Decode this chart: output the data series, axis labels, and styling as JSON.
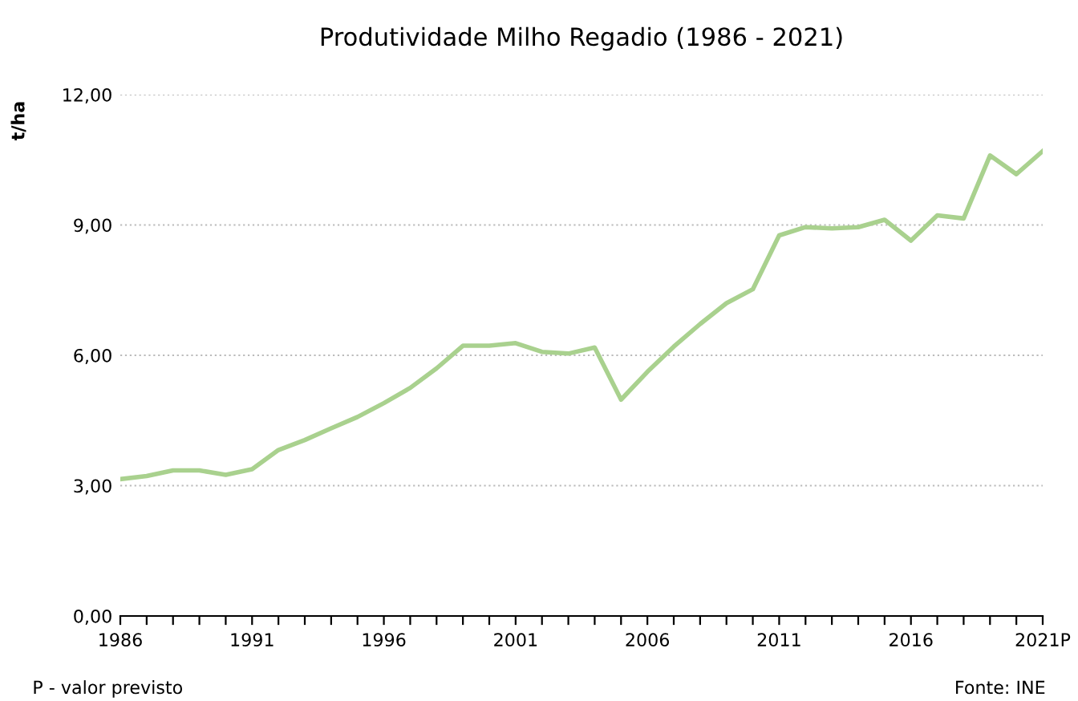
{
  "chart_data": {
    "type": "line",
    "title": "Produtividade Milho Regadio (1986 - 2021)",
    "ylabel": "t/ha",
    "x": [
      1986,
      1987,
      1988,
      1989,
      1990,
      1991,
      1992,
      1993,
      1994,
      1995,
      1996,
      1997,
      1998,
      1999,
      2000,
      2001,
      2002,
      2003,
      2004,
      2005,
      2006,
      2007,
      2008,
      2009,
      2010,
      2011,
      2012,
      2013,
      2014,
      2015,
      2016,
      2017,
      2018,
      2019,
      2020,
      2021
    ],
    "series": [
      {
        "color": "#a9d18e",
        "values": [
          3.15,
          3.22,
          3.35,
          3.35,
          3.25,
          3.38,
          3.82,
          4.05,
          4.32,
          4.58,
          4.9,
          5.25,
          5.7,
          6.22,
          6.22,
          6.28,
          6.08,
          6.04,
          6.18,
          4.98,
          5.62,
          6.2,
          6.72,
          7.2,
          7.52,
          8.76,
          8.95,
          8.92,
          8.95,
          9.12,
          8.64,
          9.22,
          9.15,
          10.6,
          10.17,
          10.7
        ]
      }
    ],
    "xlim": [
      1986,
      2021
    ],
    "xticks": [
      1986,
      {
        "value": 1987,
        "label": null
      },
      {
        "value": 1988,
        "label": null
      },
      {
        "value": 1989,
        "label": null
      },
      {
        "value": 1990,
        "label": null
      },
      1991,
      {
        "value": 1992,
        "label": null
      },
      {
        "value": 1993,
        "label": null
      },
      {
        "value": 1994,
        "label": null
      },
      {
        "value": 1995,
        "label": null
      },
      1996,
      {
        "value": 1997,
        "label": null
      },
      {
        "value": 1998,
        "label": null
      },
      {
        "value": 1999,
        "label": null
      },
      {
        "value": 2000,
        "label": null
      },
      2001,
      {
        "value": 2002,
        "label": null
      },
      {
        "value": 2003,
        "label": null
      },
      {
        "value": 2004,
        "label": null
      },
      {
        "value": 2005,
        "label": null
      },
      2006,
      {
        "value": 2007,
        "label": null
      },
      {
        "value": 2008,
        "label": null
      },
      {
        "value": 2009,
        "label": null
      },
      {
        "value": 2010,
        "label": null
      },
      2011,
      {
        "value": 2012,
        "label": null
      },
      {
        "value": 2013,
        "label": null
      },
      {
        "value": 2014,
        "label": null
      },
      {
        "value": 2015,
        "label": null
      },
      2016,
      {
        "value": 2017,
        "label": null
      },
      {
        "value": 2018,
        "label": null
      },
      {
        "value": 2019,
        "label": null
      },
      {
        "value": 2020,
        "label": null
      },
      {
        "value": 2021,
        "label": "2021P"
      }
    ],
    "ylim": [
      0,
      12
    ],
    "yticks": [
      {
        "value": 0,
        "label": "0,00"
      },
      {
        "value": 3,
        "label": "3,00"
      },
      {
        "value": 6,
        "label": "6,00"
      },
      {
        "value": 9,
        "label": "9,00"
      },
      {
        "value": 12,
        "label": "12,00"
      }
    ],
    "grid": "y",
    "marker": "none",
    "line_style": "solid",
    "legend": false,
    "annotations": [
      "P - valor previsto",
      "Fonte: INE"
    ]
  }
}
